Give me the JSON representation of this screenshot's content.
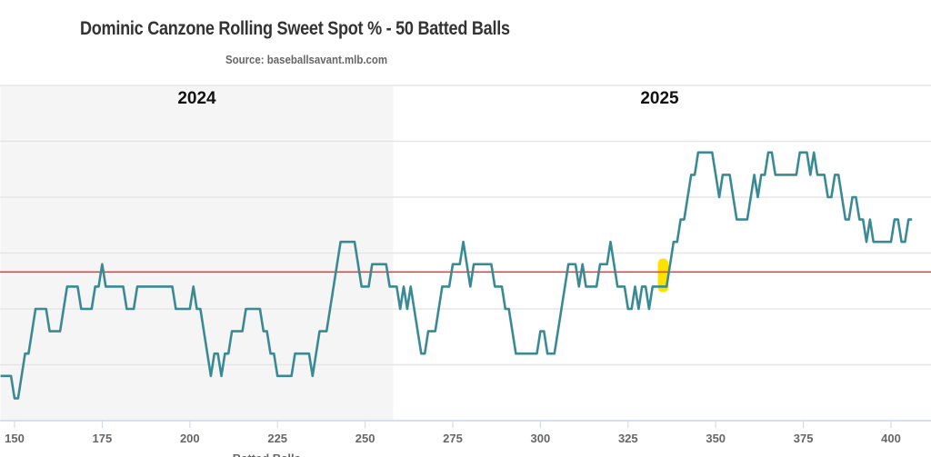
{
  "chart_data": {
    "type": "line",
    "title": "Dominic Canzone Rolling Sweet Spot % - 50 Batted Balls",
    "subtitle": "Source: baseballsavant.mlb.com",
    "xlabel": "Batted Balls",
    "ylabel": "",
    "xlim": [
      146,
      410
    ],
    "ylim": [
      20,
      50
    ],
    "x_ticks": [
      150,
      175,
      200,
      225,
      250,
      275,
      300,
      325,
      350,
      375,
      400
    ],
    "y_gridlines": [
      25,
      30,
      35,
      40,
      45,
      50
    ],
    "grid": true,
    "season_regions": [
      {
        "label": "2024",
        "from": 146,
        "to": 258,
        "shaded": true
      },
      {
        "label": "2025",
        "from": 258,
        "to": 410,
        "shaded": false
      }
    ],
    "reference_line": {
      "value": 33.3,
      "color": "#ee3333"
    },
    "highlight": {
      "x_from": 333.5,
      "x_to": 336.5,
      "y_from": 31.5,
      "y_to": 34.5,
      "color": "#ffe100"
    },
    "series": [
      {
        "color": "#3a8a94",
        "x": [
          146,
          149,
          150,
          151,
          153,
          154,
          156,
          159,
          160,
          163,
          165,
          168,
          169,
          172,
          173,
          174,
          175,
          176,
          181,
          182,
          184,
          185,
          195,
          196,
          200,
          201,
          202,
          203,
          206,
          207,
          208,
          209,
          210,
          211,
          212,
          215,
          216,
          220,
          221,
          222,
          223,
          224,
          225,
          229,
          230,
          234,
          235,
          237,
          239,
          243,
          247,
          249,
          251,
          252,
          256,
          257,
          259,
          260,
          261,
          262,
          263,
          266,
          267,
          268,
          270,
          272,
          274,
          275,
          277,
          278,
          280,
          281,
          286,
          287,
          289,
          290,
          291,
          293,
          299,
          300,
          301,
          302,
          304,
          308,
          310,
          311,
          312,
          313,
          316,
          317,
          319,
          320,
          322,
          324,
          325,
          326,
          327,
          328,
          329,
          330,
          331,
          332,
          336,
          338,
          339,
          340,
          341,
          343,
          344,
          345,
          349,
          351,
          352,
          354,
          356,
          359,
          361,
          362,
          363,
          364,
          365,
          366,
          367,
          373,
          374,
          376,
          377,
          378,
          379,
          381,
          382,
          383,
          384,
          385,
          387,
          388,
          389,
          390,
          391,
          392,
          393,
          394,
          395,
          400,
          401,
          402,
          403,
          404,
          405,
          406
        ],
        "y": [
          24,
          24,
          22,
          22,
          26,
          26,
          30,
          30,
          28,
          28,
          32,
          32,
          30,
          30,
          32,
          32,
          34,
          32,
          32,
          30,
          30,
          32,
          32,
          30,
          30,
          32,
          30,
          30,
          24,
          26,
          26,
          24,
          26,
          26,
          28,
          28,
          30,
          30,
          28,
          28,
          26,
          26,
          24,
          24,
          26,
          26,
          24,
          28,
          28,
          36,
          36,
          32,
          32,
          34,
          34,
          32,
          32,
          30,
          32,
          30,
          32,
          26,
          26,
          28,
          28,
          32,
          32,
          34,
          34,
          36,
          32,
          34,
          34,
          32,
          32,
          30,
          30,
          26,
          26,
          28,
          28,
          26,
          26,
          34,
          34,
          32,
          34,
          32,
          32,
          34,
          34,
          36,
          32,
          32,
          30,
          30,
          32,
          30,
          32,
          32,
          30,
          32,
          32,
          36,
          36,
          38,
          38,
          42,
          42,
          44,
          44,
          40,
          42,
          42,
          38,
          38,
          42,
          40,
          42,
          42,
          44,
          44,
          42,
          42,
          44,
          44,
          42,
          44,
          42,
          42,
          40,
          40,
          42,
          42,
          38,
          38,
          40,
          40,
          38,
          38,
          36,
          38,
          36,
          36,
          38,
          38,
          36,
          36,
          38,
          38
        ]
      }
    ]
  }
}
